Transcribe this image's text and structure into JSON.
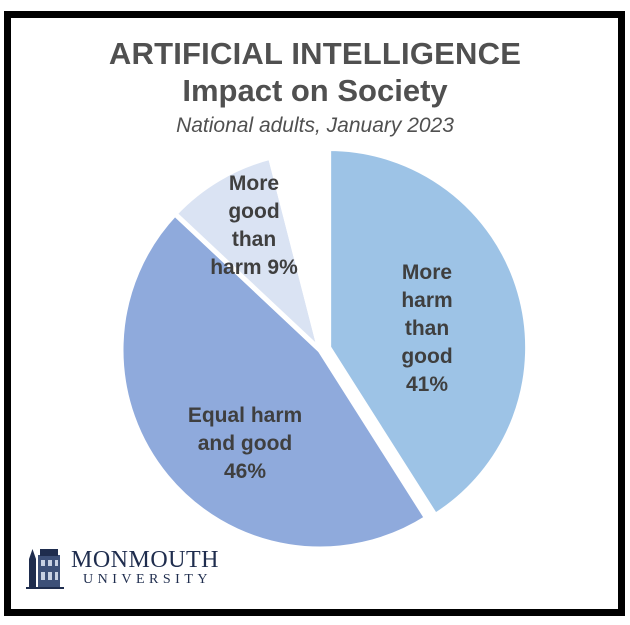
{
  "header": {
    "title_line1": "ARTIFICIAL INTELLIGENCE",
    "title_line2": "Impact on Society",
    "subtitle": "National adults, January 2023"
  },
  "slices": [
    {
      "label_lines": [
        "More",
        "harm",
        "than",
        "good",
        "41%"
      ],
      "value": 41,
      "color": "#9DC3E6"
    },
    {
      "label_lines": [
        "Equal harm",
        "and good",
        "46%"
      ],
      "value": 46,
      "color": "#8FAADC"
    },
    {
      "label_lines": [
        "More",
        "good",
        "than",
        "harm 9%"
      ],
      "value": 9,
      "color": "#DAE3F3"
    }
  ],
  "logo": {
    "name": "MONMOUTH",
    "sub": "UNIVERSITY",
    "icon": "building-icon"
  },
  "chart_data": {
    "type": "pie",
    "title": "ARTIFICIAL INTELLIGENCE Impact on Society",
    "subtitle": "National adults, January 2023",
    "categories": [
      "More harm than good",
      "Equal harm and good",
      "More good than harm",
      "(unlabeled / no answer)"
    ],
    "values": [
      41,
      46,
      9,
      4
    ],
    "colors": [
      "#9DC3E6",
      "#8FAADC",
      "#DAE3F3",
      "#FFFFFF"
    ],
    "data_labels": [
      "41%",
      "46%",
      "9%",
      ""
    ],
    "start_angle": "12 o'clock, clockwise",
    "exploded": [
      "More harm than good"
    ],
    "legend": "none (labels inside slices)",
    "source_logo": "Monmouth University"
  }
}
